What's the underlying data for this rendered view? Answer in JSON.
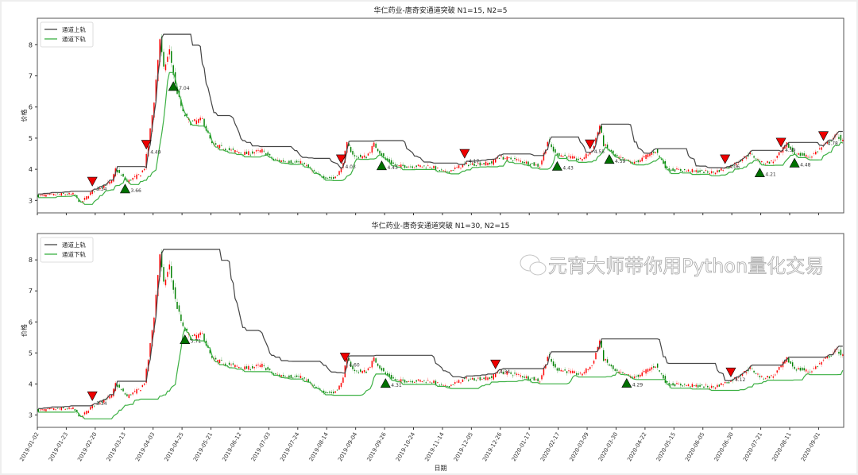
{
  "chart_data": [
    {
      "type": "candlestick",
      "title": "华仁药业-唐奇安通道突破 N1=15, N2=5",
      "N1": 15,
      "N2": 5,
      "ylabel": "价格",
      "xlabel": "",
      "ylim": [
        2.6,
        8.85
      ],
      "yticks": [
        3,
        4,
        5,
        6,
        7,
        8
      ],
      "legend": {
        "position": "top-left",
        "entries": [
          "通道上轨",
          "通道下轨"
        ]
      },
      "series_colors": {
        "upper": "#444444",
        "lower": "#3cb043",
        "up_candle": "#ff0000",
        "down_candle": "#008000"
      }
    },
    {
      "type": "candlestick",
      "title": "华仁药业-唐奇安通道突破 N1=30, N2=15",
      "N1": 30,
      "N2": 15,
      "ylabel": "价格",
      "xlabel": "日期",
      "ylim": [
        2.6,
        8.85
      ],
      "yticks": [
        3,
        4,
        5,
        6,
        7,
        8
      ],
      "legend": {
        "position": "top-left",
        "entries": [
          "通道上轨",
          "通道下轨"
        ]
      },
      "series_colors": {
        "upper": "#444444",
        "lower": "#3cb043",
        "up_candle": "#ff0000",
        "down_candle": "#008000"
      }
    }
  ],
  "price_path": {
    "trading_days": 418,
    "close_keypoints": [
      [
        0,
        3.15
      ],
      [
        12,
        3.2
      ],
      [
        18,
        3.2
      ],
      [
        22,
        2.92
      ],
      [
        28,
        3.3
      ],
      [
        38,
        3.6
      ],
      [
        40,
        4.0
      ],
      [
        46,
        3.6
      ],
      [
        53,
        3.85
      ],
      [
        55,
        4.05
      ],
      [
        57,
        4.8
      ],
      [
        60,
        6.2
      ],
      [
        63,
        8.2
      ],
      [
        65,
        7.2
      ],
      [
        68,
        7.8
      ],
      [
        71,
        6.7
      ],
      [
        75,
        5.8
      ],
      [
        79,
        5.5
      ],
      [
        85,
        5.6
      ],
      [
        90,
        4.8
      ],
      [
        100,
        4.6
      ],
      [
        108,
        4.5
      ],
      [
        116,
        4.6
      ],
      [
        122,
        4.3
      ],
      [
        137,
        4.2
      ],
      [
        145,
        3.8
      ],
      [
        153,
        3.7
      ],
      [
        157,
        4.0
      ],
      [
        160,
        4.8
      ],
      [
        164,
        4.4
      ],
      [
        170,
        4.4
      ],
      [
        174,
        4.8
      ],
      [
        180,
        4.3
      ],
      [
        186,
        4.1
      ],
      [
        203,
        4.1
      ],
      [
        211,
        3.9
      ],
      [
        221,
        4.15
      ],
      [
        235,
        4.2
      ],
      [
        238,
        4.4
      ],
      [
        248,
        4.3
      ],
      [
        260,
        4.1
      ],
      [
        264,
        4.9
      ],
      [
        268,
        4.5
      ],
      [
        281,
        4.3
      ],
      [
        287,
        4.6
      ],
      [
        289,
        5.0
      ],
      [
        291,
        5.4
      ],
      [
        293,
        4.8
      ],
      [
        299,
        4.4
      ],
      [
        309,
        4.2
      ],
      [
        320,
        4.6
      ],
      [
        326,
        4.0
      ],
      [
        338,
        3.95
      ],
      [
        350,
        3.9
      ],
      [
        359,
        4.1
      ],
      [
        369,
        4.5
      ],
      [
        375,
        4.2
      ],
      [
        381,
        4.25
      ],
      [
        388,
        4.8
      ],
      [
        392,
        4.5
      ],
      [
        400,
        4.4
      ],
      [
        408,
        4.8
      ],
      [
        414,
        5.1
      ],
      [
        417,
        4.9
      ]
    ]
  },
  "x_tick_step_days": 15,
  "x_tick_labels": [
    "2019-01-02",
    "2019-01-23",
    "2019-02-20",
    "2019-03-13",
    "2019-04-03",
    "2019-04-25",
    "2019-05-21",
    "2019-06-12",
    "2019-07-03",
    "2019-07-24",
    "2019-08-14",
    "2019-09-04",
    "2019-09-26",
    "2019-10-24",
    "2019-11-14",
    "2019-12-05",
    "2019-12-26",
    "2020-01-17",
    "2020-02-17",
    "2020-03-09",
    "2020-03-30",
    "2020-04-22",
    "2020-05-15",
    "2020-06-05",
    "2020-06-30",
    "2020-07-21",
    "2020-08-11",
    "2020-09-01"
  ],
  "watermark": "元宵大师带你用Python量化交易"
}
